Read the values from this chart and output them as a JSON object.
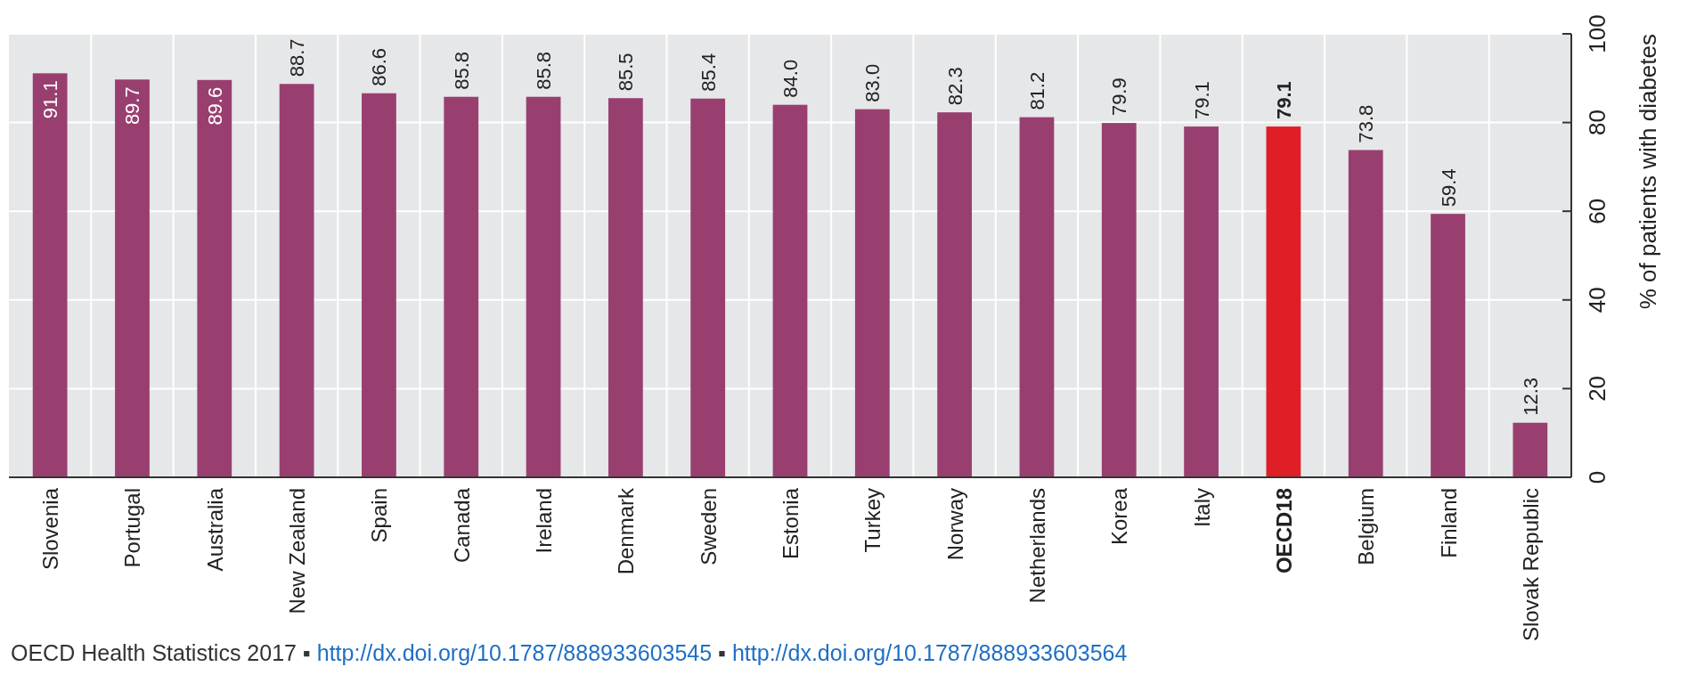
{
  "chart_data": {
    "type": "bar",
    "categories": [
      "Slovenia",
      "Portugal",
      "Australia",
      "New Zealand",
      "Spain",
      "Canada",
      "Ireland",
      "Denmark",
      "Sweden",
      "Estonia",
      "Turkey",
      "Norway",
      "Netherlands",
      "Korea",
      "Italy",
      "OECD18",
      "Belgium",
      "Finland",
      "Slovak Republic"
    ],
    "values": [
      91.1,
      89.7,
      89.6,
      88.7,
      86.6,
      85.8,
      85.8,
      85.5,
      85.4,
      84.0,
      83.0,
      82.3,
      81.2,
      79.9,
      79.1,
      79.1,
      73.8,
      59.4,
      12.3
    ],
    "colors": [
      "#993f70",
      "#993f70",
      "#993f70",
      "#993f70",
      "#993f70",
      "#993f70",
      "#993f70",
      "#993f70",
      "#993f70",
      "#993f70",
      "#993f70",
      "#993f70",
      "#993f70",
      "#993f70",
      "#993f70",
      "#e01e26",
      "#993f70",
      "#993f70",
      "#993f70"
    ],
    "ylabel": "% of patients with diabetes",
    "ylim": [
      0,
      100
    ],
    "yticks": [
      0,
      20,
      40,
      60,
      80,
      100
    ],
    "grid": true,
    "value_labels": [
      "91.1",
      "89.7",
      "89.6",
      "88.7",
      "86.6",
      "85.8",
      "85.8",
      "85.5",
      "85.4",
      "84.0",
      "83.0",
      "82.3",
      "81.2",
      "79.9",
      "79.1",
      "79.1",
      "73.8",
      "59.4",
      "12.3"
    ],
    "annotations": [
      "OECD Health Statistics 2017 ▪ http://dx.doi.org/10.1787/888933603545 ▪ http://dx.doi.org/10.1787/888933603564"
    ]
  }
}
